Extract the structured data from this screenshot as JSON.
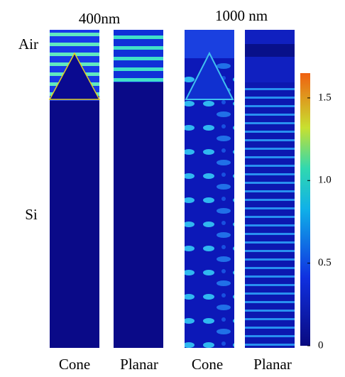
{
  "panels": [
    {
      "title": "400nm",
      "columns": [
        "Cone",
        "Planar"
      ]
    },
    {
      "title": "1000 nm",
      "columns": [
        "Cone",
        "Planar"
      ]
    }
  ],
  "regions": [
    "Air",
    "Si"
  ],
  "colorbar": {
    "lim": [
      0,
      1.65
    ],
    "ticks": [
      0,
      0.5,
      {
        "value": 1,
        "label": "1.0"
      },
      1.5
    ]
  }
}
